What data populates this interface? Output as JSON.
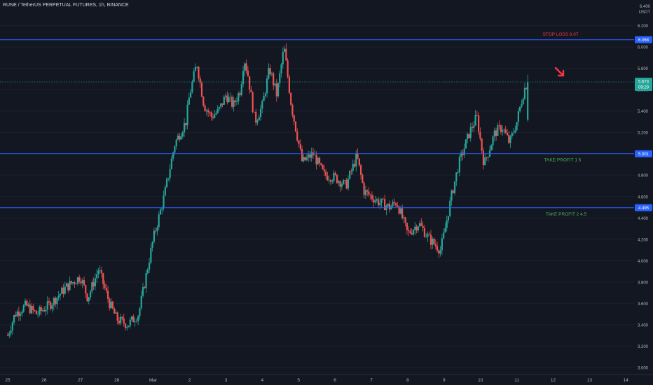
{
  "header": {
    "symbol_line": "RUNE / TetherUS PERPETUAL FUTURES, 1h, BINANCE"
  },
  "price_axis": {
    "unit_top": "6.400",
    "unit_label": "USDT",
    "ticks": [
      "6.200",
      "6.000",
      "5.800",
      "5.600",
      "5.400",
      "5.200",
      "5.000",
      "4.800",
      "4.600",
      "4.400",
      "4.200",
      "4.000",
      "3.800",
      "3.600",
      "3.400",
      "3.200",
      "3.000"
    ]
  },
  "time_axis": {
    "ticks": [
      "25",
      "26",
      "27",
      "28",
      "Mar",
      "2",
      "3",
      "4",
      "5",
      "6",
      "7",
      "8",
      "9",
      "10",
      "11",
      "12",
      "13",
      "14"
    ]
  },
  "colors": {
    "background": "#131722",
    "up": "#26a69a",
    "down": "#ef5350",
    "level_line": "#2962ff",
    "stop_text": "#f23645",
    "tp_text": "#4caf50",
    "arrow": "#f23645"
  },
  "levels": [
    {
      "name": "stop-loss",
      "price": 6.068,
      "badge": "6.068",
      "label": "STOP LOSS  6.07"
    },
    {
      "name": "take-profit-1",
      "price": 5.001,
      "badge": "5.001",
      "label": "TAKE PROFIT 1  5"
    },
    {
      "name": "take-profit-2",
      "price": 4.495,
      "badge": "4.495",
      "label": "TAKE PROFIT 2  4.5"
    }
  ],
  "last_price": {
    "price": 5.673,
    "value": "5.673",
    "countdown": "09:29"
  },
  "chart_data": {
    "type": "candlestick",
    "title": "RUNE / TetherUS PERPETUAL FUTURES, 1h, BINANCE",
    "ylim": [
      2.96,
      6.44
    ],
    "x_axis_days": [
      "Feb 25",
      "Feb 26",
      "Feb 27",
      "Feb 28",
      "Mar 1",
      "Mar 2",
      "Mar 3",
      "Mar 4",
      "Mar 5",
      "Mar 6",
      "Mar 7",
      "Mar 8",
      "Mar 9",
      "Mar 10",
      "Mar 11",
      "Mar 12",
      "Mar 13",
      "Mar 14"
    ],
    "close_path": [
      {
        "day": 0.0,
        "price": 3.3
      },
      {
        "day": 0.2,
        "price": 3.5
      },
      {
        "day": 0.5,
        "price": 3.58
      },
      {
        "day": 0.8,
        "price": 3.5
      },
      {
        "day": 1.2,
        "price": 3.6
      },
      {
        "day": 1.6,
        "price": 3.75
      },
      {
        "day": 2.0,
        "price": 3.85
      },
      {
        "day": 2.2,
        "price": 3.65
      },
      {
        "day": 2.5,
        "price": 3.92
      },
      {
        "day": 2.8,
        "price": 3.6
      },
      {
        "day": 3.0,
        "price": 3.45
      },
      {
        "day": 3.3,
        "price": 3.4
      },
      {
        "day": 3.6,
        "price": 3.5
      },
      {
        "day": 4.0,
        "price": 4.2
      },
      {
        "day": 4.3,
        "price": 4.6
      },
      {
        "day": 4.6,
        "price": 5.1
      },
      {
        "day": 4.9,
        "price": 5.3
      },
      {
        "day": 5.0,
        "price": 5.55
      },
      {
        "day": 5.2,
        "price": 5.85
      },
      {
        "day": 5.4,
        "price": 5.45
      },
      {
        "day": 5.6,
        "price": 5.35
      },
      {
        "day": 5.8,
        "price": 5.4
      },
      {
        "day": 6.0,
        "price": 5.55
      },
      {
        "day": 6.2,
        "price": 5.45
      },
      {
        "day": 6.4,
        "price": 5.6
      },
      {
        "day": 6.5,
        "price": 5.9
      },
      {
        "day": 6.6,
        "price": 5.75
      },
      {
        "day": 6.8,
        "price": 5.3
      },
      {
        "day": 7.0,
        "price": 5.45
      },
      {
        "day": 7.2,
        "price": 5.8
      },
      {
        "day": 7.4,
        "price": 5.55
      },
      {
        "day": 7.6,
        "price": 6.0
      },
      {
        "day": 7.8,
        "price": 5.45
      },
      {
        "day": 8.0,
        "price": 5.1
      },
      {
        "day": 8.1,
        "price": 4.92
      },
      {
        "day": 8.4,
        "price": 5.0
      },
      {
        "day": 8.7,
        "price": 4.8
      },
      {
        "day": 9.0,
        "price": 4.78
      },
      {
        "day": 9.3,
        "price": 4.7
      },
      {
        "day": 9.6,
        "price": 4.98
      },
      {
        "day": 9.8,
        "price": 4.65
      },
      {
        "day": 10.2,
        "price": 4.55
      },
      {
        "day": 10.5,
        "price": 4.5
      },
      {
        "day": 10.7,
        "price": 4.55
      },
      {
        "day": 11.0,
        "price": 4.25
      },
      {
        "day": 11.3,
        "price": 4.35
      },
      {
        "day": 11.6,
        "price": 4.2
      },
      {
        "day": 11.9,
        "price": 4.1
      },
      {
        "day": 12.0,
        "price": 4.25
      },
      {
        "day": 12.2,
        "price": 4.6
      },
      {
        "day": 12.4,
        "price": 4.9
      },
      {
        "day": 12.7,
        "price": 5.2
      },
      {
        "day": 12.9,
        "price": 5.35
      },
      {
        "day": 13.1,
        "price": 4.9
      },
      {
        "day": 13.4,
        "price": 5.2
      },
      {
        "day": 13.6,
        "price": 5.25
      },
      {
        "day": 13.8,
        "price": 5.1
      },
      {
        "day": 14.0,
        "price": 5.3
      },
      {
        "day": 14.2,
        "price": 5.6
      },
      {
        "day": 14.3,
        "price": 5.673
      }
    ]
  }
}
